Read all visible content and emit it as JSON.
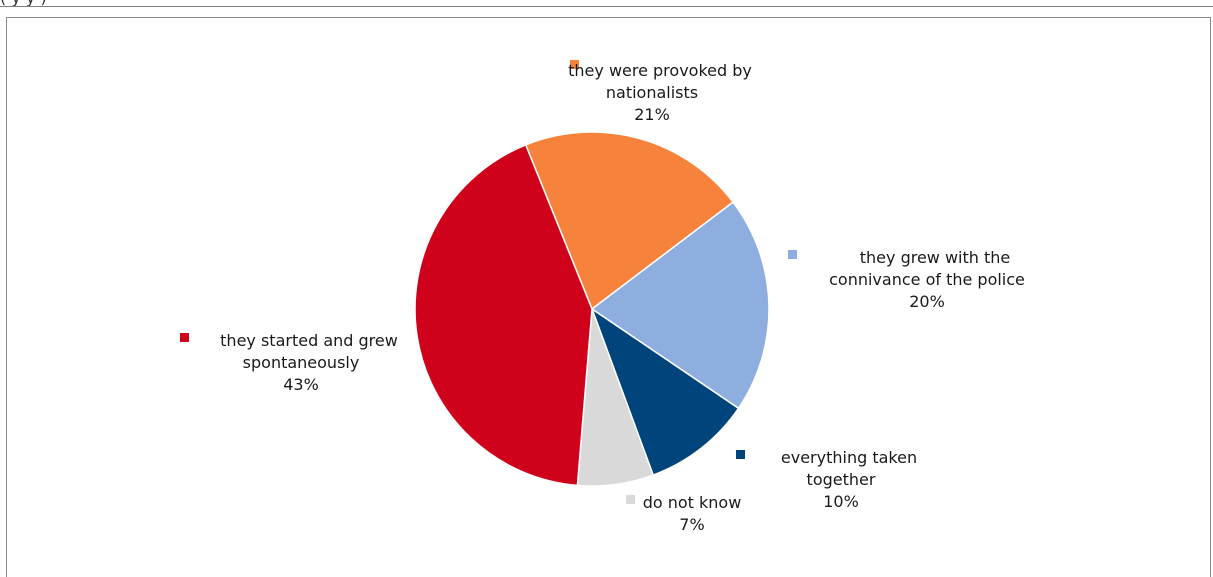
{
  "chart_data": {
    "type": "pie",
    "title": "",
    "categories": [
      "they were provoked by nationalists",
      "they grew with the connivance of the police",
      "everything taken together",
      "do not know",
      "they started and grew spontaneously"
    ],
    "values": [
      21,
      20,
      10,
      7,
      43
    ],
    "value_labels": [
      "21%",
      "20%",
      "10%",
      "7%",
      "43%"
    ],
    "colors": [
      "#f7823c",
      "#8eaee0",
      "#00447c",
      "#d9d9d9",
      "#d0021b"
    ],
    "legend_placement": "around-pie"
  }
}
